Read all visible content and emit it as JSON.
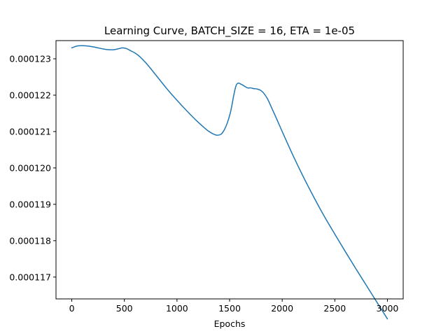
{
  "chart_data": {
    "type": "line",
    "title": "Learning Curve, BATCH_SIZE = 16, ETA = 1e-05",
    "xlabel": "Epochs",
    "ylabel": "",
    "xlim": [
      -150,
      3150
    ],
    "ylim": [
      0.0001164,
      0.0001235
    ],
    "grid": false,
    "x_ticks": [
      0,
      500,
      1000,
      1500,
      2000,
      2500,
      3000
    ],
    "x_tick_labels": [
      "0",
      "500",
      "1000",
      "1500",
      "2000",
      "2500",
      "3000"
    ],
    "y_ticks": [
      0.000117,
      0.000118,
      0.000119,
      0.00012,
      0.000121,
      0.000122,
      0.000123
    ],
    "y_tick_labels": [
      "0.000117",
      "0.000118",
      "0.000119",
      "0.000120",
      "0.000121",
      "0.000122",
      "0.000123"
    ],
    "series": [
      {
        "color": "#1f77b4",
        "x": [
          0,
          50,
          100,
          150,
          200,
          250,
          300,
          350,
          400,
          450,
          480,
          520,
          560,
          600,
          650,
          700,
          750,
          800,
          850,
          900,
          950,
          1000,
          1050,
          1100,
          1150,
          1200,
          1250,
          1300,
          1340,
          1380,
          1420,
          1450,
          1480,
          1510,
          1540,
          1560,
          1580,
          1610,
          1640,
          1670,
          1700,
          1730,
          1760,
          1790,
          1820,
          1860,
          1900,
          1950,
          2000,
          2100,
          2200,
          2300,
          2400,
          2500,
          2600,
          2700,
          2800,
          2900,
          3000
        ],
        "y": [
          0.0001233,
          0.00012335,
          0.00012336,
          0.00012335,
          0.00012333,
          0.0001233,
          0.00012327,
          0.00012325,
          0.00012325,
          0.00012328,
          0.0001233,
          0.00012328,
          0.00012322,
          0.00012316,
          0.00012305,
          0.0001229,
          0.00012273,
          0.00012255,
          0.00012237,
          0.00012219,
          0.00012202,
          0.00012186,
          0.0001217,
          0.00012155,
          0.0001214,
          0.00012126,
          0.00012113,
          0.00012101,
          0.00012094,
          0.0001209,
          0.00012093,
          0.00012105,
          0.00012125,
          0.00012155,
          0.000122,
          0.00012225,
          0.00012233,
          0.0001223,
          0.00012225,
          0.0001222,
          0.0001222,
          0.00012218,
          0.00012217,
          0.00012214,
          0.00012207,
          0.0001219,
          0.00012165,
          0.00012133,
          0.000121,
          0.00012036,
          0.00011976,
          0.0001192,
          0.00011867,
          0.00011818,
          0.0001177,
          0.00011723,
          0.00011677,
          0.00011631,
          0.00011585
        ]
      }
    ]
  }
}
